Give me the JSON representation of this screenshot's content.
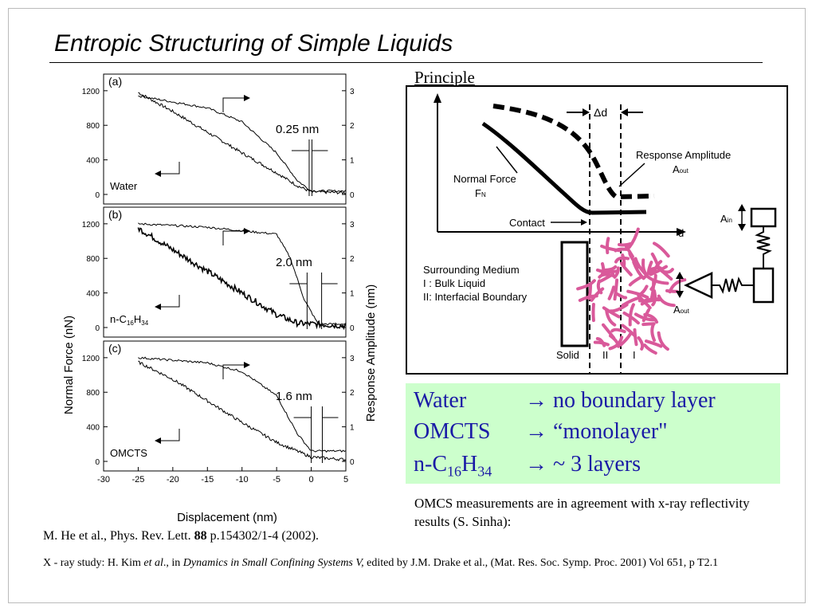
{
  "title": "Entropic Structuring of Simple Liquids",
  "principle": {
    "heading": "Principle",
    "delta_d": "Δd",
    "response_amplitude": "Response Amplitude",
    "a_out": "A",
    "a_out_sub": "out",
    "normal_force": "Normal Force",
    "f_n": "F",
    "f_n_sub": "N",
    "contact": "Contact",
    "d_axis": "d",
    "a_in": "A",
    "a_in_sub": "in",
    "medium_1": "Surrounding Medium",
    "medium_2": "I : Bulk Liquid",
    "medium_3": "II: Interfacial Boundary",
    "solid": "Solid",
    "zone_2": "II",
    "zone_1": "I"
  },
  "summary": {
    "rows": [
      {
        "liquid": "Water",
        "arrow": "→",
        "result": "no boundary layer"
      },
      {
        "liquid": "OMCTS",
        "arrow": "→",
        "result": "“monolayer\""
      },
      {
        "liquid_prefix": "n-C",
        "sub1": "16",
        "mid": "H",
        "sub2": "34",
        "arrow": "→",
        "result": "~ 3 layers"
      }
    ]
  },
  "note": "OMCS measurements are  in agreement with x-ray  reflectivity results (S. Sinha):",
  "ref1": {
    "pre": "M. He et al., Phys. Rev. Lett. ",
    "bold": "88",
    "post": " p.154302/1-4 (2002)."
  },
  "ref2": {
    "a": "X - ray study: H. Kim ",
    "b": "et al",
    "c": "., in ",
    "d": "Dynamics in Small Confining Systems V,",
    "e": " edited by J.M. Drake et al., (Mat. Res. Soc. Symp. Proc. 2001) Vol 651, p T2.1"
  },
  "chart_data": {
    "type": "line",
    "xlabel": "Displacement (nm)",
    "ylabel": "Normal Force (nN)",
    "y2label": "Response Amplitude (nm)",
    "xlim": [
      -30,
      5
    ],
    "xticks": [
      -30,
      -25,
      -20,
      -15,
      -10,
      -5,
      0,
      5
    ],
    "yticks": [
      0,
      400,
      800,
      1200
    ],
    "y2ticks": [
      0,
      1,
      2,
      3
    ],
    "panels": [
      {
        "label": "(a)",
        "sample": "Water",
        "gap": "0.25 nm",
        "force": [
          [
            -25,
            1180
          ],
          [
            -20,
            960
          ],
          [
            -15,
            720
          ],
          [
            -10,
            480
          ],
          [
            -5,
            250
          ],
          [
            -2,
            100
          ],
          [
            0,
            30
          ],
          [
            5,
            20
          ]
        ],
        "amplitude": [
          [
            -25,
            2.85
          ],
          [
            -15,
            2.5
          ],
          [
            -10,
            2.1
          ],
          [
            -5,
            1.2
          ],
          [
            -2,
            0.4
          ],
          [
            0,
            0.1
          ],
          [
            5,
            0.1
          ]
        ]
      },
      {
        "label": "(b)",
        "sample_prefix": "n-C",
        "sub1": "16",
        "mid": "H",
        "sub2": "34",
        "gap": "2.0 nm",
        "force": [
          [
            -25,
            1150
          ],
          [
            -20,
            900
          ],
          [
            -15,
            650
          ],
          [
            -10,
            400
          ],
          [
            -5,
            150
          ],
          [
            -2,
            50
          ],
          [
            5,
            20
          ]
        ],
        "amplitude": [
          [
            -25,
            3.0
          ],
          [
            -15,
            2.9
          ],
          [
            -5,
            2.7
          ],
          [
            -3,
            2.0
          ],
          [
            -1,
            0.8
          ],
          [
            1,
            0.1
          ],
          [
            5,
            0.1
          ]
        ]
      },
      {
        "label": "(c)",
        "sample": "OMCTS",
        "gap": "1.6 nm",
        "force": [
          [
            -25,
            1150
          ],
          [
            -20,
            950
          ],
          [
            -15,
            700
          ],
          [
            -10,
            450
          ],
          [
            -5,
            220
          ],
          [
            0,
            50
          ],
          [
            5,
            20
          ]
        ],
        "amplitude": [
          [
            -25,
            3.0
          ],
          [
            -15,
            2.85
          ],
          [
            -10,
            2.6
          ],
          [
            -5,
            1.9
          ],
          [
            -2,
            0.8
          ],
          [
            0,
            0.3
          ],
          [
            5,
            0.3
          ]
        ]
      }
    ]
  }
}
